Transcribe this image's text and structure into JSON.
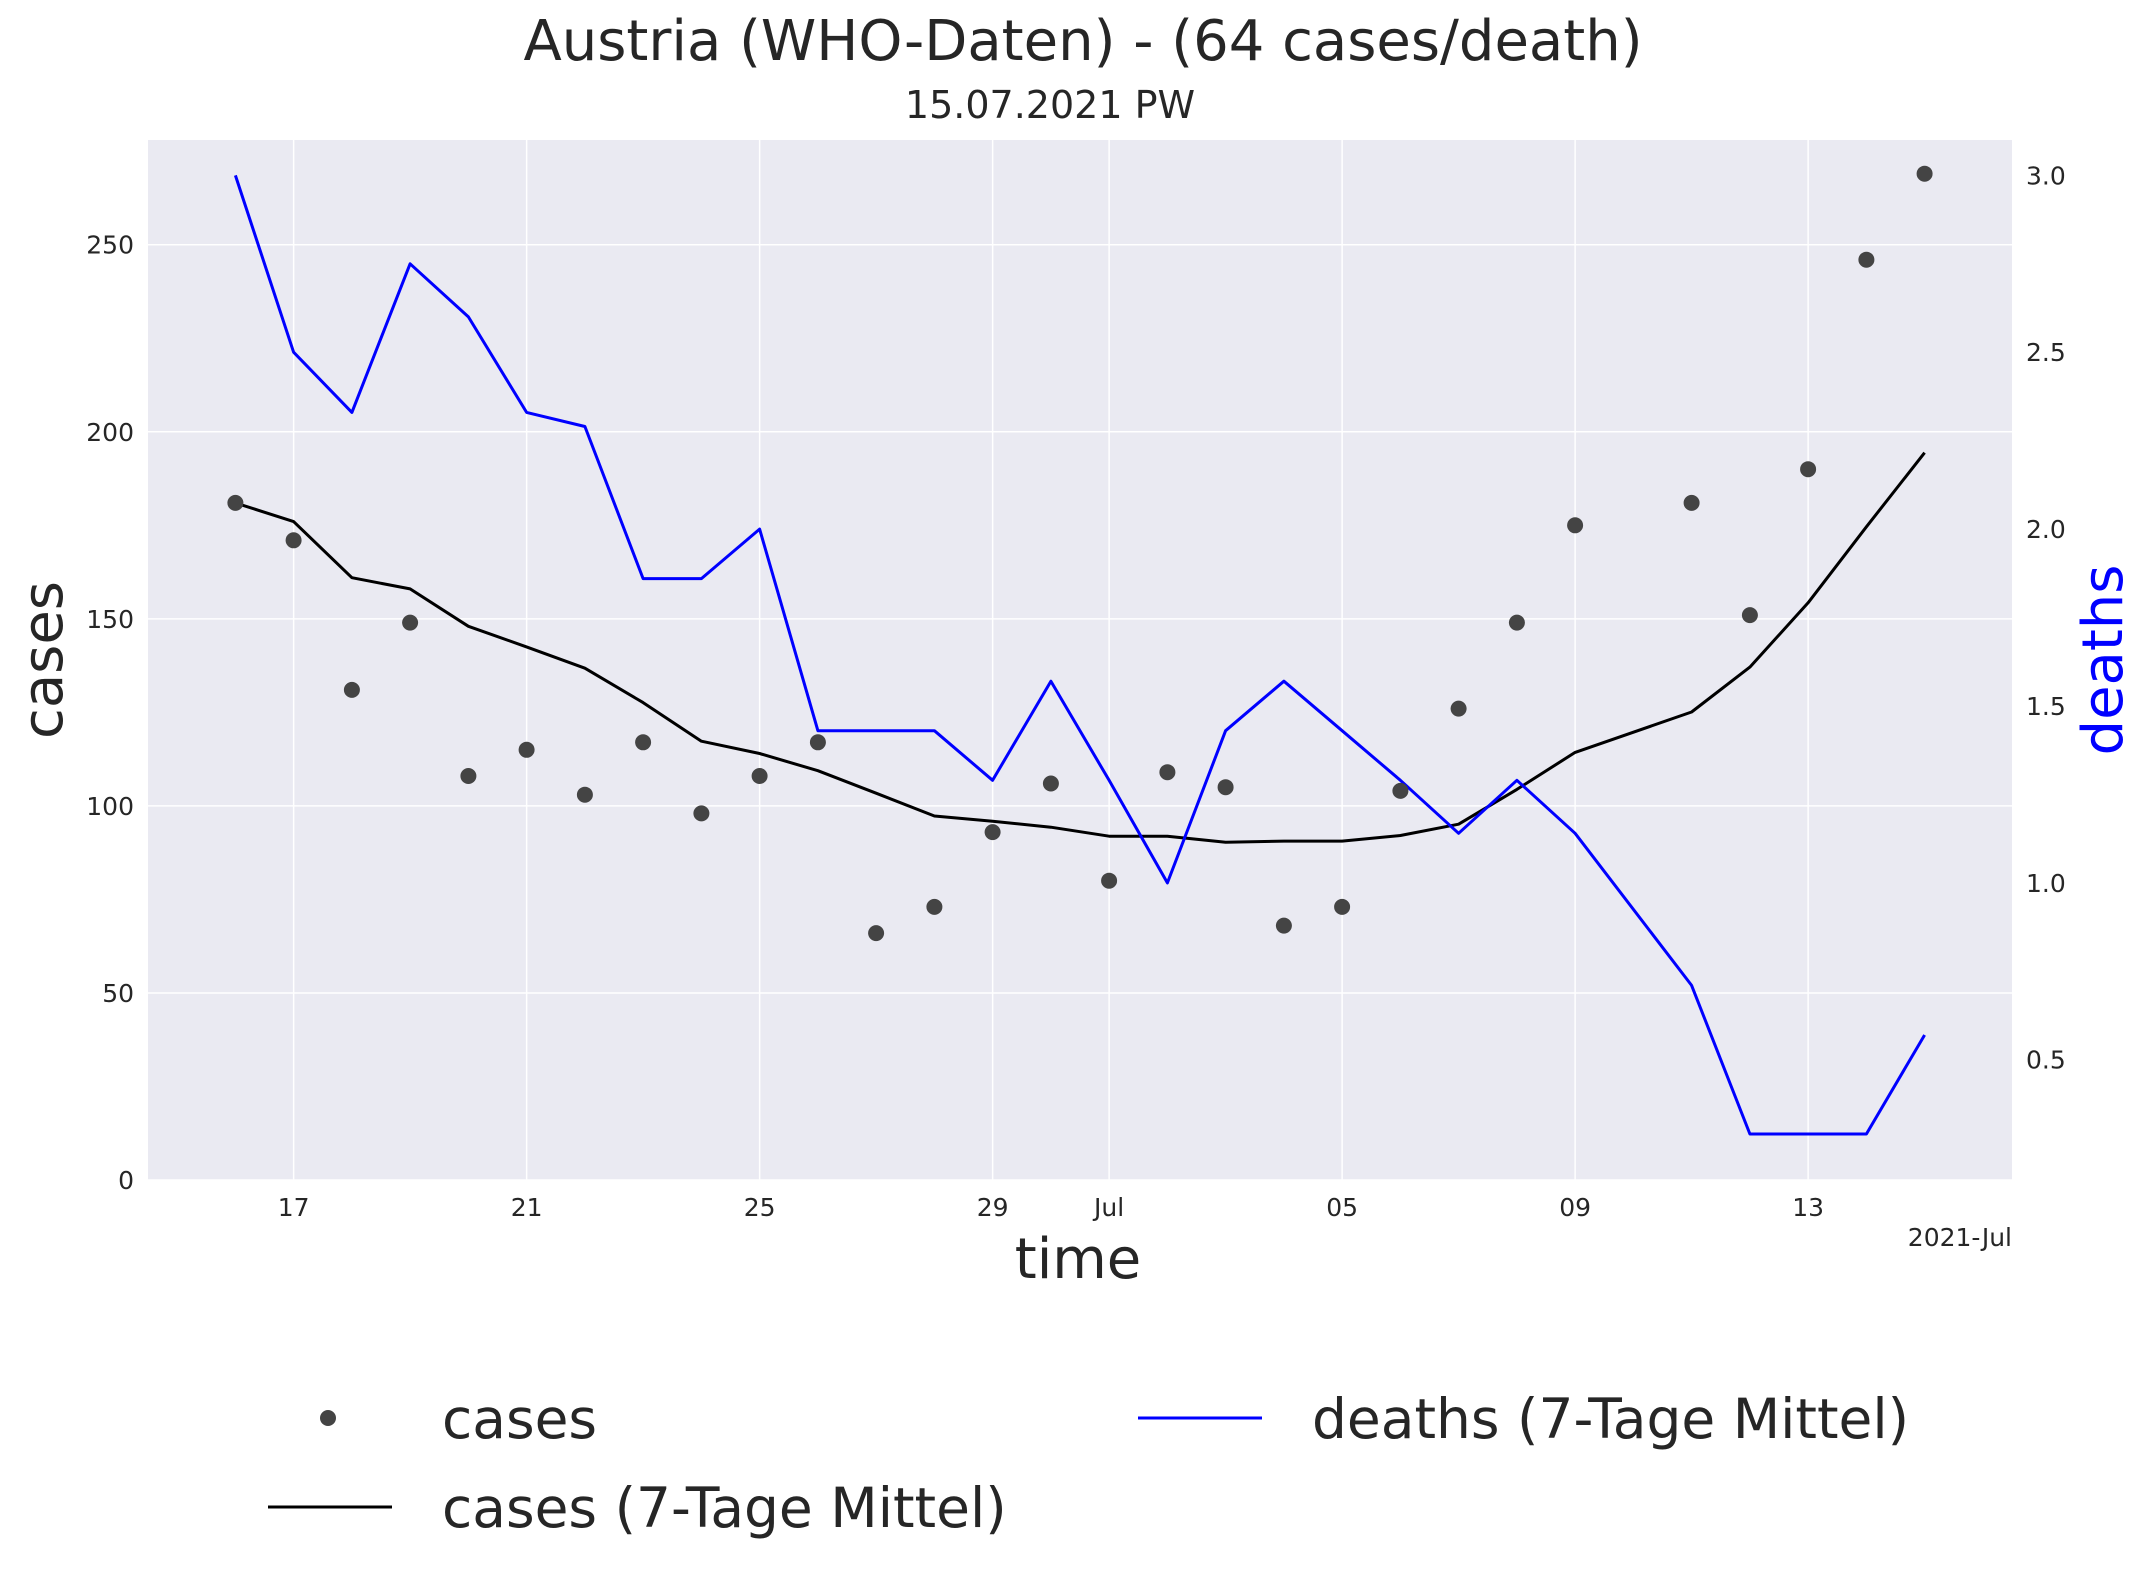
{
  "chart_data": {
    "type": "line",
    "title": "Austria (WHO-Daten) - (64 cases/death)",
    "subtitle": "15.07.2021 PW",
    "xlabel": "time",
    "ylabel": "cases",
    "y2label": "deaths",
    "x_offset_label": "2021-Jul",
    "x_tick_labels": [
      "17",
      "21",
      "25",
      "29",
      "Jul",
      "05",
      "09",
      "13"
    ],
    "x_tick_dates": [
      "2021-06-17",
      "2021-06-21",
      "2021-06-25",
      "2021-06-29",
      "2021-07-01",
      "2021-07-05",
      "2021-07-09",
      "2021-07-13"
    ],
    "x": [
      "2021-06-16",
      "2021-06-17",
      "2021-06-18",
      "2021-06-19",
      "2021-06-20",
      "2021-06-21",
      "2021-06-22",
      "2021-06-23",
      "2021-06-24",
      "2021-06-25",
      "2021-06-26",
      "2021-06-27",
      "2021-06-28",
      "2021-06-29",
      "2021-06-30",
      "2021-07-01",
      "2021-07-02",
      "2021-07-03",
      "2021-07-04",
      "2021-07-05",
      "2021-07-06",
      "2021-07-07",
      "2021-07-08",
      "2021-07-09",
      "2021-07-10",
      "2021-07-11",
      "2021-07-12",
      "2021-07-13",
      "2021-07-14",
      "2021-07-15"
    ],
    "xlim": [
      "2021-06-14T12:00",
      "2021-07-16T12:00"
    ],
    "ylim": [
      0,
      278
    ],
    "y2lim": [
      0.16,
      3.1
    ],
    "y_ticks": [
      0,
      50,
      100,
      150,
      200,
      250
    ],
    "y2_ticks": [
      0.5,
      1.0,
      1.5,
      2.0,
      2.5,
      3.0
    ],
    "y2_tick_labels": [
      "0.5",
      "1.0",
      "1.5",
      "2.0",
      "2.5",
      "3.0"
    ],
    "grid": true,
    "legend_position": "bottom",
    "series": [
      {
        "name": "cases",
        "type": "scatter",
        "axis": "left",
        "color": "#444444",
        "values": [
          181,
          171,
          131,
          149,
          108,
          115,
          103,
          117,
          98,
          108,
          117,
          66,
          73,
          93,
          106,
          80,
          109,
          105,
          68,
          73,
          104,
          126,
          149,
          175,
          null,
          181,
          151,
          190,
          246,
          269
        ]
      },
      {
        "name": "cases (7-Tage Mittel)",
        "type": "line",
        "axis": "left",
        "color": "#000000",
        "values": [
          181,
          176,
          161,
          158,
          148,
          142.5,
          136.8,
          127.6,
          117.3,
          114,
          109.4,
          103.4,
          97.3,
          95.9,
          94.3,
          91.9,
          91.9,
          90.3,
          90.6,
          90.6,
          92.1,
          95.1,
          104.4,
          114.3,
          null,
          125.1,
          137.1,
          154.3,
          174.6,
          194.4
        ]
      },
      {
        "name": "deaths (7-Tage Mittel)",
        "type": "line",
        "axis": "right",
        "color": "#0000ff",
        "values": [
          3.0,
          2.5,
          2.33,
          2.75,
          2.6,
          2.33,
          2.29,
          1.86,
          1.86,
          2.0,
          1.43,
          1.43,
          1.43,
          1.29,
          1.57,
          1.29,
          1.0,
          1.43,
          1.57,
          1.43,
          1.29,
          1.14,
          1.29,
          1.14,
          null,
          0.71,
          0.29,
          0.29,
          0.29,
          0.57
        ]
      }
    ]
  }
}
